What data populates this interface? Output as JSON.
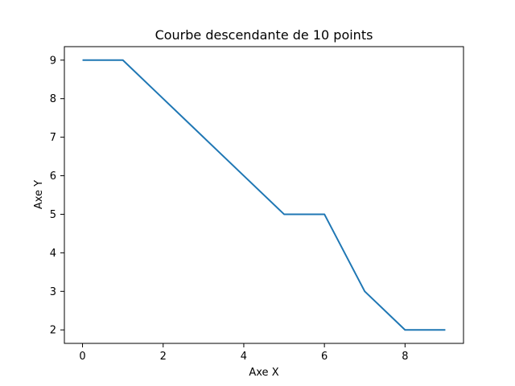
{
  "chart_data": {
    "type": "line",
    "title": "Courbe descendante de 10 points",
    "xlabel": "Axe X",
    "ylabel": "Axe Y",
    "x": [
      0,
      1,
      2,
      3,
      4,
      5,
      6,
      7,
      8,
      9
    ],
    "series": [
      {
        "values": [
          9,
          9,
          8,
          7,
          6,
          5,
          5,
          3,
          2,
          2
        ],
        "color": "#1f77b4"
      }
    ],
    "xlim": [
      -0.45,
      9.45
    ],
    "ylim": [
      1.65,
      9.35
    ],
    "x_ticks": [
      0,
      2,
      4,
      6,
      8
    ],
    "y_ticks": [
      2,
      3,
      4,
      5,
      6,
      7,
      8,
      9
    ],
    "grid": false,
    "legend": false
  }
}
